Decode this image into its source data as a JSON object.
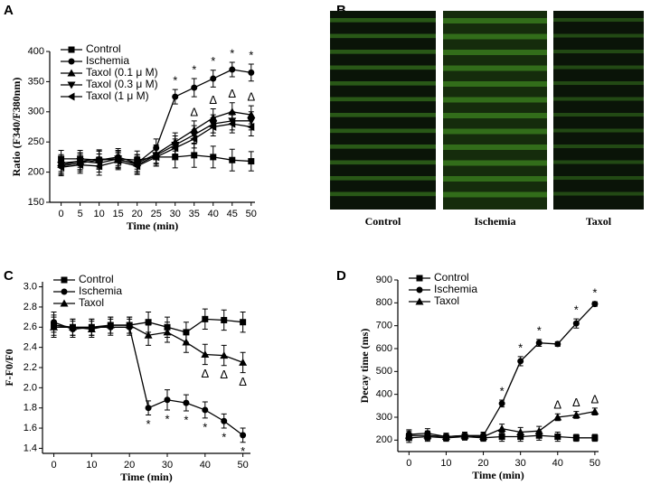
{
  "chart_data": [
    {
      "type": "line",
      "panel": "A",
      "xlabel": "Time (min)",
      "ylabel": "Ratio (F340/F380nm)",
      "x": [
        0,
        5,
        10,
        15,
        20,
        25,
        30,
        35,
        40,
        45,
        50
      ],
      "xlim": [
        -3,
        51
      ],
      "xticks": [
        0,
        5,
        10,
        15,
        20,
        25,
        30,
        35,
        40,
        45,
        50
      ],
      "ylim": [
        150,
        400
      ],
      "yticks": [
        150,
        200,
        250,
        300,
        350,
        400
      ],
      "series": [
        {
          "name": "Control",
          "color": "#000000",
          "marker": "square",
          "values": [
            222,
            222,
            220,
            222,
            220,
            225,
            225,
            228,
            225,
            220,
            218
          ],
          "errors": [
            14,
            14,
            15,
            14,
            15,
            15,
            18,
            20,
            18,
            18,
            16
          ]
        },
        {
          "name": "Ischemia",
          "color": "#000000",
          "marker": "circle",
          "values": [
            210,
            215,
            220,
            225,
            215,
            240,
            325,
            340,
            355,
            370,
            365
          ],
          "errors": [
            14,
            14,
            15,
            14,
            14,
            15,
            12,
            15,
            14,
            12,
            14
          ],
          "point_labels": [
            null,
            null,
            null,
            null,
            null,
            null,
            "*",
            "*",
            "*",
            "*",
            "*"
          ]
        },
        {
          "name": "Taxol (0.1 μ M)",
          "color": "#000000",
          "marker": "tri-up",
          "values": [
            215,
            218,
            222,
            220,
            215,
            230,
            250,
            270,
            290,
            300,
            295
          ],
          "errors": [
            14,
            14,
            15,
            14,
            14,
            15,
            15,
            15,
            15,
            15,
            15
          ],
          "point_labels": [
            null,
            null,
            null,
            null,
            null,
            null,
            null,
            "Δ",
            "Δ",
            "Δ",
            "Δ"
          ]
        },
        {
          "name": "Taxol (0.3 μ M)",
          "color": "#000000",
          "marker": "tri-down",
          "values": [
            212,
            218,
            215,
            222,
            212,
            228,
            245,
            262,
            280,
            285,
            285
          ],
          "errors": [
            14,
            14,
            15,
            14,
            14,
            15,
            15,
            15,
            15,
            15,
            15
          ]
        },
        {
          "name": "Taxol (1 μ M)",
          "color": "#000000",
          "marker": "tri-left",
          "values": [
            208,
            212,
            210,
            218,
            210,
            225,
            240,
            255,
            275,
            280,
            275
          ],
          "errors": [
            14,
            14,
            15,
            14,
            14,
            15,
            15,
            15,
            15,
            15,
            15
          ]
        }
      ]
    },
    {
      "type": "image",
      "panel": "B",
      "labels": [
        "Control",
        "Ischemia",
        "Taxol"
      ]
    },
    {
      "type": "line",
      "panel": "C",
      "xlabel": "Time (min)",
      "ylabel": "F-F0/F0",
      "x": [
        0,
        5,
        10,
        15,
        20,
        25,
        30,
        35,
        40,
        45,
        50
      ],
      "xlim": [
        -3,
        52
      ],
      "xticks": [
        0,
        10,
        20,
        30,
        40,
        50
      ],
      "ylim": [
        1.35,
        3.05
      ],
      "yticks": [
        1.4,
        1.6,
        1.8,
        {
          "value": 2.0,
          "label": "2.0"
        },
        2.2,
        2.4,
        2.6,
        2.8,
        {
          "value": 3.0,
          "label": "3.0"
        }
      ],
      "series": [
        {
          "name": "Control",
          "color": "#000000",
          "marker": "square",
          "values": [
            2.62,
            2.6,
            2.6,
            2.62,
            2.62,
            2.65,
            2.6,
            2.55,
            2.68,
            2.67,
            2.65
          ],
          "errors": [
            0.1,
            0.08,
            0.08,
            0.08,
            0.08,
            0.1,
            0.1,
            0.1,
            0.1,
            0.1,
            0.1
          ]
        },
        {
          "name": "Ischemia",
          "color": "#000000",
          "marker": "circle",
          "values": [
            2.65,
            2.58,
            2.6,
            2.6,
            2.6,
            1.8,
            1.88,
            1.85,
            1.78,
            1.67,
            1.53
          ],
          "errors": [
            0.1,
            0.08,
            0.08,
            0.08,
            0.08,
            0.07,
            0.1,
            0.08,
            0.08,
            0.07,
            0.07
          ],
          "point_labels": [
            null,
            null,
            null,
            null,
            null,
            "*",
            "*",
            "*",
            "*",
            "*",
            "*"
          ]
        },
        {
          "name": "Taxol",
          "color": "#000000",
          "marker": "tri-up",
          "values": [
            2.6,
            2.6,
            2.58,
            2.62,
            2.62,
            2.52,
            2.55,
            2.45,
            2.33,
            2.32,
            2.25
          ],
          "errors": [
            0.1,
            0.08,
            0.08,
            0.08,
            0.08,
            0.1,
            0.1,
            0.1,
            0.1,
            0.1,
            0.1
          ],
          "point_labels": [
            null,
            null,
            null,
            null,
            null,
            null,
            null,
            null,
            "Δ",
            "Δ",
            "Δ"
          ]
        }
      ]
    },
    {
      "type": "line",
      "panel": "D",
      "xlabel": "Time (min)",
      "ylabel": "Decay time (ms)",
      "x": [
        0,
        5,
        10,
        15,
        20,
        25,
        30,
        35,
        40,
        45,
        50
      ],
      "xlim": [
        -3,
        51
      ],
      "xticks": [
        0,
        10,
        20,
        30,
        40,
        50
      ],
      "ylim": [
        150,
        900
      ],
      "yticks": [
        200,
        300,
        400,
        500,
        600,
        700,
        800,
        900
      ],
      "series": [
        {
          "name": "Control",
          "color": "#000000",
          "marker": "square",
          "values": [
            210,
            215,
            210,
            215,
            210,
            215,
            215,
            220,
            215,
            210,
            210
          ],
          "errors": [
            20,
            20,
            15,
            15,
            15,
            20,
            20,
            20,
            20,
            15,
            15
          ]
        },
        {
          "name": "Ischemia",
          "color": "#000000",
          "marker": "circle",
          "values": [
            225,
            230,
            215,
            220,
            220,
            360,
            545,
            625,
            620,
            710,
            795
          ],
          "errors": [
            20,
            20,
            15,
            15,
            15,
            15,
            20,
            15,
            10,
            20,
            10
          ],
          "point_labels": [
            null,
            null,
            null,
            null,
            null,
            "*",
            "*",
            "*",
            null,
            "*",
            "*"
          ]
        },
        {
          "name": "Taxol",
          "color": "#000000",
          "marker": "tri-up",
          "values": [
            220,
            220,
            215,
            220,
            215,
            250,
            235,
            240,
            300,
            310,
            325
          ],
          "errors": [
            20,
            20,
            15,
            15,
            15,
            20,
            20,
            20,
            15,
            15,
            15
          ],
          "point_labels": [
            null,
            null,
            null,
            null,
            null,
            null,
            null,
            null,
            "Δ",
            "Δ",
            "Δ"
          ]
        }
      ]
    }
  ]
}
